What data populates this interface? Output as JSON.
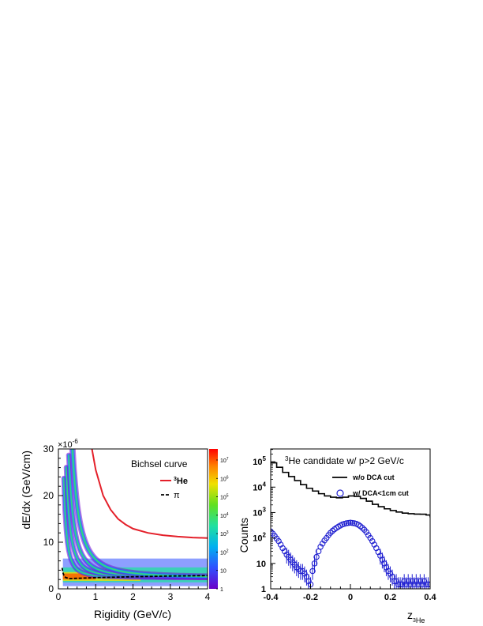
{
  "chart_data": [
    {
      "type": "heatmap",
      "title": "",
      "xlabel": "Rigidity (GeV/c)",
      "ylabel": "dE/dx (GeV/cm)",
      "y_exponent": "×10",
      "y_exponent_power": "-6",
      "xlim": [
        0,
        4
      ],
      "ylim": [
        0,
        30
      ],
      "x_ticks": [
        "0",
        "1",
        "2",
        "3",
        "4"
      ],
      "y_ticks": [
        "0",
        "10",
        "20",
        "30"
      ],
      "colorbar": {
        "scale": "log",
        "labels": [
          {
            "base": "1",
            "exp": ""
          },
          {
            "base": "10",
            "exp": ""
          },
          {
            "base": "10",
            "exp": "2"
          },
          {
            "base": "10",
            "exp": "3"
          },
          {
            "base": "10",
            "exp": "4"
          },
          {
            "base": "10",
            "exp": "5"
          },
          {
            "base": "10",
            "exp": "6"
          },
          {
            "base": "10",
            "exp": "7"
          }
        ]
      },
      "annotation": "Bichsel curve",
      "legend": [
        {
          "label": "He",
          "sup": "3",
          "style": "solid",
          "color": "#e4202a"
        },
        {
          "label": "π",
          "sup": "",
          "style": "dashed",
          "color": "#000000"
        }
      ],
      "bands": [
        {
          "name": "pi",
          "scale": 0.45
        },
        {
          "name": "K",
          "scale": 1.05
        },
        {
          "name": "p",
          "scale": 2.0
        },
        {
          "name": "d",
          "scale": 3.9
        }
      ],
      "curves": {
        "he3": {
          "x": [
            0.9,
            1.0,
            1.2,
            1.4,
            1.6,
            1.8,
            2.0,
            2.4,
            2.8,
            3.2,
            3.6,
            4.0
          ],
          "y": [
            30,
            25.5,
            20.0,
            17.0,
            15.0,
            13.8,
            12.9,
            12.0,
            11.5,
            11.2,
            11.0,
            10.9
          ]
        },
        "pi": {
          "x": [
            0.1,
            0.12,
            0.15,
            0.2,
            0.3,
            0.5,
            1.0,
            2.0,
            3.0,
            4.0
          ],
          "y": [
            4.5,
            3.5,
            2.8,
            2.4,
            2.2,
            2.25,
            2.4,
            2.6,
            2.75,
            2.85
          ]
        }
      }
    },
    {
      "type": "line",
      "title": "He candidate w/ p>2 GeV/c",
      "title_sup": "3",
      "xlabel": "z",
      "xlabel_sub": "3",
      "xlabel_sub2": "He",
      "ylabel": "Counts",
      "xlim": [
        -0.4,
        0.4
      ],
      "ylim_log10": [
        0,
        5.5
      ],
      "yscale": "log",
      "x_ticks": [
        "-0.4",
        "-0.2",
        "0",
        "0.2",
        "0.4"
      ],
      "y_ticks": [
        {
          "base": "1",
          "exp": ""
        },
        {
          "base": "10",
          "exp": ""
        },
        {
          "base": "10",
          "exp": "2"
        },
        {
          "base": "10",
          "exp": "3"
        },
        {
          "base": "10",
          "exp": "4"
        },
        {
          "base": "10",
          "exp": "5"
        }
      ],
      "legend_placement": "top-right",
      "series": [
        {
          "name": "w/o DCA cut",
          "style": "solid",
          "color": "#000000",
          "x": [
            -0.4,
            -0.37,
            -0.34,
            -0.31,
            -0.28,
            -0.25,
            -0.22,
            -0.19,
            -0.16,
            -0.13,
            -0.1,
            -0.07,
            -0.04,
            -0.01,
            0.02,
            0.05,
            0.08,
            0.11,
            0.14,
            0.17,
            0.2,
            0.23,
            0.26,
            0.29,
            0.32,
            0.35,
            0.38,
            0.4
          ],
          "y": [
            90000,
            60000,
            38000,
            26000,
            18000,
            12500,
            9000,
            7000,
            5500,
            4500,
            4000,
            3800,
            4000,
            4500,
            4300,
            3600,
            2800,
            2100,
            1700,
            1400,
            1200,
            1050,
            950,
            900,
            870,
            860,
            800,
            650
          ]
        },
        {
          "name": "w/ DCA<1cm cut",
          "style": "open-circle",
          "color": "#2020d0",
          "x": [
            -0.4,
            -0.39,
            -0.38,
            -0.37,
            -0.36,
            -0.35,
            -0.34,
            -0.33,
            -0.32,
            -0.31,
            -0.3,
            -0.29,
            -0.28,
            -0.27,
            -0.26,
            -0.25,
            -0.24,
            -0.23,
            -0.22,
            -0.21,
            -0.2,
            -0.19,
            -0.18,
            -0.17,
            -0.16,
            -0.15,
            -0.14,
            -0.13,
            -0.12,
            -0.11,
            -0.1,
            -0.09,
            -0.08,
            -0.07,
            -0.06,
            -0.05,
            -0.04,
            -0.03,
            -0.02,
            -0.01,
            0.0,
            0.01,
            0.02,
            0.03,
            0.04,
            0.05,
            0.06,
            0.07,
            0.08,
            0.09,
            0.1,
            0.11,
            0.12,
            0.13,
            0.14,
            0.15,
            0.16,
            0.17,
            0.18,
            0.19,
            0.2,
            0.21,
            0.22,
            0.23,
            0.24,
            0.25,
            0.26,
            0.27,
            0.28,
            0.29,
            0.3,
            0.31,
            0.32,
            0.33,
            0.34,
            0.35,
            0.36,
            0.37,
            0.38,
            0.39,
            0.4
          ],
          "y": [
            180,
            150,
            120,
            95,
            75,
            55,
            40,
            30,
            22,
            18,
            14,
            11,
            9,
            7,
            6,
            5,
            5,
            4,
            3,
            2,
            1.5,
            5,
            10,
            18,
            30,
            45,
            60,
            80,
            100,
            130,
            160,
            190,
            220,
            250,
            280,
            310,
            340,
            360,
            380,
            390,
            400,
            390,
            380,
            360,
            330,
            290,
            250,
            210,
            170,
            130,
            100,
            75,
            55,
            40,
            28,
            20,
            14,
            10,
            7,
            5,
            4,
            3,
            2,
            2,
            1.5,
            1.5,
            1.5,
            2,
            1.5,
            2,
            1.5,
            2,
            1.5,
            2,
            1.5,
            2,
            1.5,
            2,
            1.5,
            1.5,
            1.5
          ]
        }
      ]
    }
  ]
}
